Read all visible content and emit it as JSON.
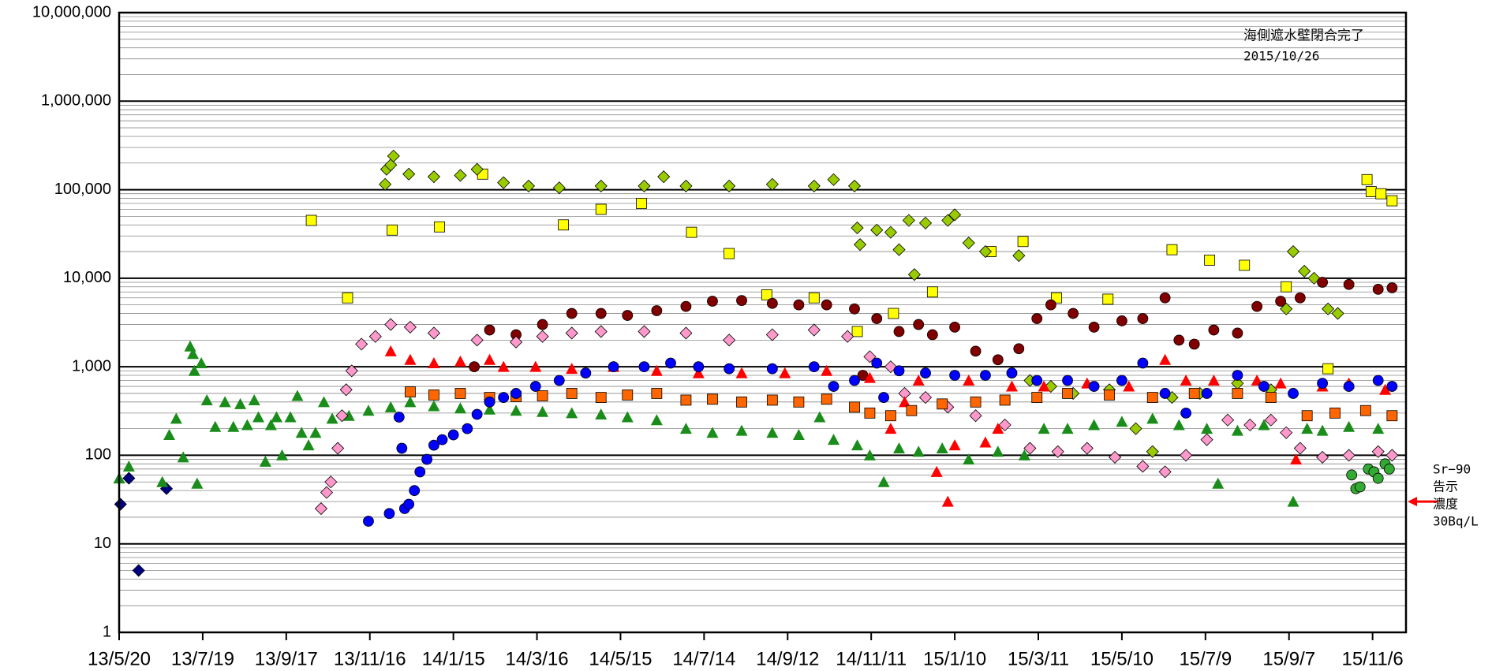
{
  "chart_data": {
    "type": "scatter",
    "log_y": true,
    "grid": true,
    "minor_grid": true,
    "xlim": [
      "2013-05-20",
      "2015-11-30"
    ],
    "xticks": [
      {
        "value": "2013-05-20",
        "label": "13/5/20"
      },
      {
        "value": "2013-07-19",
        "label": "13/7/19"
      },
      {
        "value": "2013-09-17",
        "label": "13/9/17"
      },
      {
        "value": "2013-11-16",
        "label": "13/11/16"
      },
      {
        "value": "2014-01-15",
        "label": "14/1/15"
      },
      {
        "value": "2014-03-16",
        "label": "14/3/16"
      },
      {
        "value": "2014-05-15",
        "label": "14/5/15"
      },
      {
        "value": "2014-07-14",
        "label": "14/7/14"
      },
      {
        "value": "2014-09-12",
        "label": "14/9/12"
      },
      {
        "value": "2014-11-11",
        "label": "14/11/11"
      },
      {
        "value": "2015-01-10",
        "label": "15/1/10"
      },
      {
        "value": "2015-03-11",
        "label": "15/3/11"
      },
      {
        "value": "2015-05-10",
        "label": "15/5/10"
      },
      {
        "value": "2015-07-09",
        "label": "15/7/9"
      },
      {
        "value": "2015-09-07",
        "label": "15/9/7"
      },
      {
        "value": "2015-11-06",
        "label": "15/11/6"
      }
    ],
    "ylim": [
      1,
      10000000
    ],
    "yticks": [
      1,
      10,
      {
        "value": 100,
        "label": "100"
      },
      {
        "value": 1000,
        "label": "1,000"
      },
      {
        "value": 10000,
        "label": "10,000"
      },
      {
        "value": 100000,
        "label": "100,000"
      },
      {
        "value": 1000000,
        "label": "1,000,000"
      },
      {
        "value": 10000000,
        "label": "10,000,000"
      }
    ],
    "annotations": {
      "box": [
        "海側遮水壁閉合完了",
        "2015/10/26"
      ],
      "reference": {
        "lines": [
          "Sr−90",
          "告示",
          "濃度",
          "30Bq/L"
        ],
        "value": 30,
        "color": "#ff0000"
      }
    },
    "series": [
      {
        "marker": "diamond",
        "color": "#000080",
        "x": [
          "2013-05-21",
          "2013-05-27",
          "2013-06-03",
          "2013-06-23"
        ],
        "values": [
          28,
          55,
          5,
          42
        ]
      },
      {
        "marker": "triangle",
        "color": "#1a8c1a",
        "x": [
          "2013-05-20",
          "2013-05-27",
          "2013-06-20",
          "2013-06-25",
          "2013-06-30",
          "2013-07-05",
          "2013-07-10",
          "2013-07-12",
          "2013-07-13",
          "2013-07-18",
          "2013-07-15",
          "2013-07-22",
          "2013-07-28",
          "2013-08-04",
          "2013-08-10",
          "2013-08-15",
          "2013-08-20",
          "2013-08-25",
          "2013-08-28",
          "2013-09-02",
          "2013-09-06",
          "2013-09-10",
          "2013-09-14",
          "2013-09-20",
          "2013-09-25",
          "2013-09-28",
          "2013-10-03",
          "2013-10-08",
          "2013-10-14",
          "2013-10-20",
          "2013-11-01",
          "2013-11-15",
          "2013-12-01",
          "2013-12-15",
          "2014-01-01",
          "2014-01-20",
          "2014-02-10",
          "2014-03-01",
          "2014-03-20",
          "2014-04-10",
          "2014-05-01",
          "2014-05-20",
          "2014-06-10",
          "2014-07-01",
          "2014-07-20",
          "2014-08-10",
          "2014-09-01",
          "2014-09-20",
          "2014-10-05",
          "2014-10-15",
          "2014-11-01",
          "2014-11-10",
          "2014-11-20",
          "2014-12-01",
          "2014-12-15",
          "2015-01-01",
          "2015-01-20",
          "2015-02-10",
          "2015-03-01",
          "2015-03-15",
          "2015-04-01",
          "2015-04-20",
          "2015-05-10",
          "2015-06-01",
          "2015-06-20",
          "2015-07-10",
          "2015-07-18",
          "2015-08-01",
          "2015-08-20",
          "2015-09-10",
          "2015-09-20",
          "2015-10-01",
          "2015-10-20",
          "2015-11-10"
        ],
        "values": [
          55,
          75,
          50,
          170,
          260,
          95,
          1700,
          1400,
          900,
          1100,
          48,
          420,
          210,
          400,
          210,
          380,
          220,
          420,
          270,
          85,
          220,
          270,
          100,
          270,
          470,
          180,
          130,
          180,
          400,
          260,
          280,
          320,
          350,
          400,
          360,
          340,
          330,
          320,
          310,
          300,
          290,
          270,
          250,
          200,
          180,
          190,
          180,
          170,
          270,
          150,
          130,
          100,
          50,
          120,
          110,
          120,
          90,
          110,
          100,
          200,
          200,
          220,
          240,
          260,
          220,
          200,
          48,
          190,
          220,
          30,
          200,
          190,
          210,
          200
        ]
      },
      {
        "marker": "square",
        "color": "#ffff00",
        "x": [
          "2013-10-05",
          "2013-10-31",
          "2013-12-02",
          "2014-01-05",
          "2014-02-05",
          "2014-04-04",
          "2014-05-01",
          "2014-05-30",
          "2014-07-05",
          "2014-08-01",
          "2014-08-28",
          "2014-10-01",
          "2014-11-01",
          "2014-11-27",
          "2014-12-25",
          "2015-02-05",
          "2015-02-28",
          "2015-03-24",
          "2015-04-30",
          "2015-06-15",
          "2015-07-12",
          "2015-08-06",
          "2015-09-05",
          "2015-10-05",
          "2015-11-02",
          "2015-11-05",
          "2015-11-12",
          "2015-11-20"
        ],
        "values": [
          45000,
          6000,
          35000,
          38000,
          150000,
          40000,
          60000,
          70000,
          33000,
          19000,
          6500,
          6000,
          2500,
          4000,
          7000,
          20000,
          26000,
          6000,
          5800,
          21000,
          16000,
          14000,
          8000,
          950,
          130000,
          95000,
          90000,
          75000
        ]
      },
      {
        "marker": "diamond",
        "color": "#99cc00",
        "x": [
          "2013-11-27",
          "2013-11-28",
          "2013-12-01",
          "2013-12-03",
          "2013-12-14",
          "2014-01-01",
          "2014-01-20",
          "2014-02-01",
          "2014-02-20",
          "2014-03-10",
          "2014-04-01",
          "2014-05-01",
          "2014-06-01",
          "2014-06-15",
          "2014-07-01",
          "2014-08-01",
          "2014-09-01",
          "2014-10-01",
          "2014-10-15",
          "2014-10-30",
          "2014-11-01",
          "2014-11-03",
          "2014-11-15",
          "2014-11-25",
          "2014-12-01",
          "2014-12-08",
          "2014-12-12",
          "2014-12-20",
          "2015-01-05",
          "2015-01-10",
          "2015-01-20",
          "2015-02-01",
          "2015-02-25",
          "2015-03-05",
          "2015-03-20",
          "2015-04-05",
          "2015-05-01",
          "2015-05-20",
          "2015-06-01",
          "2015-06-15",
          "2015-07-05",
          "2015-08-01",
          "2015-08-25",
          "2015-09-05",
          "2015-09-10",
          "2015-09-18",
          "2015-09-25",
          "2015-10-05",
          "2015-10-12"
        ],
        "values": [
          115000,
          170000,
          190000,
          240000,
          150000,
          140000,
          145000,
          170000,
          120000,
          110000,
          105000,
          110000,
          110000,
          140000,
          110000,
          110000,
          115000,
          110000,
          130000,
          110000,
          37000,
          24000,
          35000,
          33000,
          21000,
          45000,
          11000,
          42000,
          45000,
          52000,
          25000,
          20000,
          18000,
          700,
          600,
          500,
          550,
          200,
          110,
          450,
          500,
          650,
          550,
          4500,
          20000,
          12000,
          10000,
          4500,
          4000
        ]
      },
      {
        "marker": "circle",
        "color": "#800000",
        "x": [
          "2014-01-30",
          "2014-02-10",
          "2014-03-01",
          "2014-03-20",
          "2014-04-10",
          "2014-05-01",
          "2014-05-20",
          "2014-06-10",
          "2014-07-01",
          "2014-07-20",
          "2014-08-10",
          "2014-09-01",
          "2014-09-20",
          "2014-10-10",
          "2014-10-30",
          "2014-11-05",
          "2014-11-15",
          "2014-12-01",
          "2014-12-15",
          "2014-12-25",
          "2015-01-10",
          "2015-01-25",
          "2015-02-10",
          "2015-02-25",
          "2015-03-10",
          "2015-03-20",
          "2015-04-05",
          "2015-04-20",
          "2015-05-10",
          "2015-05-25",
          "2015-06-10",
          "2015-06-20",
          "2015-07-01",
          "2015-07-15",
          "2015-08-01",
          "2015-08-15",
          "2015-09-01",
          "2015-09-15",
          "2015-10-01",
          "2015-10-20",
          "2015-11-10",
          "2015-11-20"
        ],
        "values": [
          1000,
          2600,
          2300,
          3000,
          4000,
          4000,
          3800,
          4300,
          4800,
          5500,
          5600,
          5200,
          5000,
          5000,
          4500,
          800,
          3500,
          2500,
          3000,
          2300,
          2800,
          1500,
          1200,
          1600,
          3500,
          5000,
          4000,
          2800,
          3300,
          3500,
          6000,
          2000,
          1800,
          2600,
          2400,
          4800,
          5500,
          6000,
          9000,
          8500,
          7500,
          7800
        ]
      },
      {
        "marker": "diamond",
        "color": "#ff99cc",
        "x": [
          "2013-10-12",
          "2013-10-16",
          "2013-10-19",
          "2013-10-24",
          "2013-10-27",
          "2013-10-30",
          "2013-11-03",
          "2013-11-10",
          "2013-11-20",
          "2013-12-01",
          "2013-12-15",
          "2014-01-01",
          "2014-02-01",
          "2014-03-01",
          "2014-03-20",
          "2014-04-10",
          "2014-05-01",
          "2014-06-01",
          "2014-07-01",
          "2014-08-01",
          "2014-09-01",
          "2014-10-01",
          "2014-10-25",
          "2014-11-10",
          "2014-11-25",
          "2014-12-05",
          "2014-12-20",
          "2015-01-05",
          "2015-01-25",
          "2015-02-15",
          "2015-03-05",
          "2015-03-25",
          "2015-04-15",
          "2015-05-05",
          "2015-05-25",
          "2015-06-10",
          "2015-06-25",
          "2015-07-10",
          "2015-07-25",
          "2015-08-10",
          "2015-08-25",
          "2015-09-05",
          "2015-09-15",
          "2015-10-01",
          "2015-10-20",
          "2015-11-10",
          "2015-11-20"
        ],
        "values": [
          25,
          38,
          50,
          120,
          280,
          550,
          900,
          1800,
          2200,
          3000,
          2800,
          2400,
          2000,
          1900,
          2200,
          2400,
          2500,
          2500,
          2400,
          2000,
          2300,
          2600,
          2200,
          1300,
          1000,
          500,
          450,
          350,
          280,
          220,
          120,
          110,
          120,
          95,
          75,
          65,
          100,
          150,
          250,
          220,
          250,
          180,
          120,
          95,
          100,
          110,
          100
        ]
      },
      {
        "marker": "triangle",
        "color": "#ff0000",
        "x": [
          "2013-12-01",
          "2013-12-15",
          "2014-01-01",
          "2014-01-20",
          "2014-02-10",
          "2014-02-20",
          "2014-03-15",
          "2014-04-10",
          "2014-05-10",
          "2014-06-10",
          "2014-07-10",
          "2014-08-10",
          "2014-09-10",
          "2014-10-10",
          "2014-11-10",
          "2014-11-25",
          "2014-12-05",
          "2014-12-15",
          "2014-12-28",
          "2015-01-05",
          "2015-01-10",
          "2015-01-20",
          "2015-02-01",
          "2015-02-10",
          "2015-02-20",
          "2015-03-15",
          "2015-04-15",
          "2015-05-15",
          "2015-06-10",
          "2015-06-25",
          "2015-07-15",
          "2015-08-15",
          "2015-09-01",
          "2015-09-12",
          "2015-10-01",
          "2015-10-20",
          "2015-11-15"
        ],
        "values": [
          1500,
          1200,
          1100,
          1150,
          1200,
          1000,
          1000,
          950,
          1000,
          900,
          850,
          850,
          850,
          900,
          750,
          200,
          400,
          700,
          65,
          30,
          130,
          700,
          140,
          200,
          600,
          600,
          650,
          600,
          1200,
          700,
          700,
          700,
          650,
          90,
          600,
          650,
          550
        ]
      },
      {
        "marker": "square",
        "color": "#ff6600",
        "x": [
          "2013-12-15",
          "2014-01-01",
          "2014-01-20",
          "2014-02-10",
          "2014-03-01",
          "2014-03-20",
          "2014-04-10",
          "2014-05-01",
          "2014-05-20",
          "2014-06-10",
          "2014-07-01",
          "2014-07-20",
          "2014-08-10",
          "2014-09-01",
          "2014-09-20",
          "2014-10-10",
          "2014-10-30",
          "2014-11-10",
          "2014-11-25",
          "2014-12-10",
          "2015-01-01",
          "2015-01-25",
          "2015-02-15",
          "2015-03-10",
          "2015-04-01",
          "2015-05-01",
          "2015-06-01",
          "2015-07-01",
          "2015-08-01",
          "2015-08-25",
          "2015-09-20",
          "2015-10-10",
          "2015-11-01",
          "2015-11-20"
        ],
        "values": [
          520,
          480,
          500,
          450,
          460,
          470,
          500,
          450,
          480,
          500,
          420,
          430,
          400,
          420,
          400,
          430,
          350,
          300,
          280,
          320,
          380,
          400,
          420,
          450,
          500,
          480,
          450,
          500,
          500,
          450,
          280,
          300,
          320,
          280
        ]
      },
      {
        "marker": "circle",
        "color": "#0000ff",
        "x": [
          "2013-11-15",
          "2013-11-30",
          "2013-12-07",
          "2013-12-09",
          "2013-12-11",
          "2013-12-14",
          "2013-12-18",
          "2013-12-22",
          "2013-12-27",
          "2014-01-01",
          "2014-01-07",
          "2014-01-15",
          "2014-01-25",
          "2014-02-01",
          "2014-02-10",
          "2014-02-20",
          "2014-03-01",
          "2014-03-15",
          "2014-04-01",
          "2014-04-20",
          "2014-05-10",
          "2014-06-01",
          "2014-06-20",
          "2014-07-10",
          "2014-08-01",
          "2014-09-01",
          "2014-10-01",
          "2014-10-15",
          "2014-10-30",
          "2014-11-15",
          "2014-11-20",
          "2014-12-01",
          "2014-12-20",
          "2015-01-10",
          "2015-02-01",
          "2015-02-20",
          "2015-03-10",
          "2015-04-01",
          "2015-04-20",
          "2015-05-10",
          "2015-05-25",
          "2015-06-10",
          "2015-06-25",
          "2015-07-10",
          "2015-08-01",
          "2015-08-20",
          "2015-09-10",
          "2015-10-01",
          "2015-10-20",
          "2015-11-10",
          "2015-11-20"
        ],
        "values": [
          18,
          22,
          270,
          120,
          25,
          28,
          40,
          65,
          90,
          130,
          150,
          170,
          200,
          290,
          400,
          450,
          500,
          600,
          700,
          850,
          1000,
          1000,
          1100,
          1000,
          950,
          950,
          1000,
          600,
          700,
          1100,
          450,
          900,
          850,
          800,
          800,
          850,
          700,
          700,
          600,
          700,
          1100,
          500,
          300,
          500,
          800,
          600,
          500,
          650,
          600,
          700,
          600
        ]
      },
      {
        "marker": "circle",
        "color": "#33aa33",
        "x": [
          "2015-10-22",
          "2015-10-25",
          "2015-10-28",
          "2015-11-03",
          "2015-11-07",
          "2015-11-10",
          "2015-11-15",
          "2015-11-18"
        ],
        "values": [
          60,
          42,
          44,
          70,
          65,
          55,
          80,
          70
        ]
      }
    ]
  }
}
